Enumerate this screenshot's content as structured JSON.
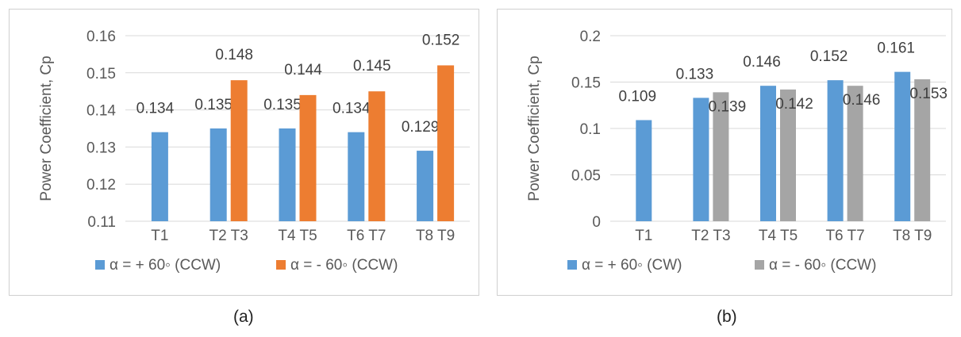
{
  "chart_data": [
    {
      "type": "bar",
      "panel_label": "(a)",
      "ylabel": "Power Coefficient, Cp",
      "ylim": [
        0.11,
        0.16
      ],
      "yticks": [
        "0.11",
        "0.12",
        "0.13",
        "0.14",
        "0.15",
        "0.16"
      ],
      "grid": true,
      "legend_position": "bottom",
      "categories": [
        "T1",
        "T2 T3",
        "T4 T5",
        "T6 T7",
        "T8 T9"
      ],
      "series": [
        {
          "name": "α = + 60◦ (CCW)",
          "color": "#5b9bd5",
          "values": [
            0.134,
            0.135,
            0.135,
            0.134,
            0.129
          ],
          "labels": [
            "0.134",
            "0.135",
            "0.135",
            "0.134",
            "0.129"
          ]
        },
        {
          "name": "α = - 60◦ (CCW)",
          "color": "#ed7d31",
          "values": [
            null,
            0.148,
            0.144,
            0.145,
            0.152
          ],
          "labels": [
            "",
            "0.148",
            "0.144",
            "0.145",
            "0.152"
          ]
        }
      ]
    },
    {
      "type": "bar",
      "panel_label": "(b)",
      "ylabel": "Power Coefficient, Cp",
      "ylim": [
        0,
        0.2
      ],
      "yticks": [
        "0",
        "0.05",
        "0.1",
        "0.15",
        "0.2"
      ],
      "grid": true,
      "legend_position": "bottom",
      "categories": [
        "T1",
        "T2 T3",
        "T4 T5",
        "T6 T7",
        "T8 T9"
      ],
      "series": [
        {
          "name": "α = + 60◦ (CW)",
          "color": "#5b9bd5",
          "values": [
            0.109,
            0.133,
            0.146,
            0.152,
            0.161
          ],
          "labels": [
            "0.109",
            "0.133",
            "0.146",
            "0.152",
            "0.161"
          ]
        },
        {
          "name": "α = - 60◦ (CCW)",
          "color": "#a5a5a5",
          "values": [
            null,
            0.139,
            0.142,
            0.146,
            0.153
          ],
          "labels": [
            "",
            "0.139",
            "0.142",
            "0.146",
            "0.153"
          ]
        }
      ]
    }
  ]
}
